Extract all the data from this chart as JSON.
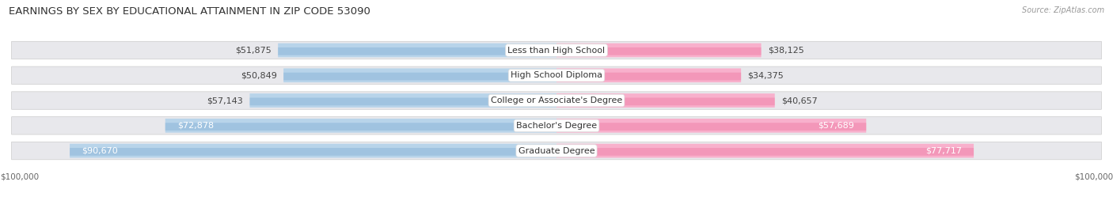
{
  "title": "EARNINGS BY SEX BY EDUCATIONAL ATTAINMENT IN ZIP CODE 53090",
  "source": "Source: ZipAtlas.com",
  "categories": [
    "Less than High School",
    "High School Diploma",
    "College or Associate's Degree",
    "Bachelor's Degree",
    "Graduate Degree"
  ],
  "male_values": [
    51875,
    50849,
    57143,
    72878,
    90670
  ],
  "female_values": [
    38125,
    34375,
    40657,
    57689,
    77717
  ],
  "male_color": "#8ab4d8",
  "female_color": "#f080a8",
  "male_color_light": "#b8d4ea",
  "female_color_light": "#f8b0cc",
  "axis_max": 100000,
  "bg_color": "#ffffff",
  "row_bg_color": "#e8e8ec",
  "bar_height": 0.55,
  "title_fontsize": 9.5,
  "label_fontsize": 8.0,
  "tick_fontsize": 7.5,
  "category_fontsize": 8.0,
  "inside_label_threshold_male": 65000,
  "inside_label_threshold_female": 55000
}
